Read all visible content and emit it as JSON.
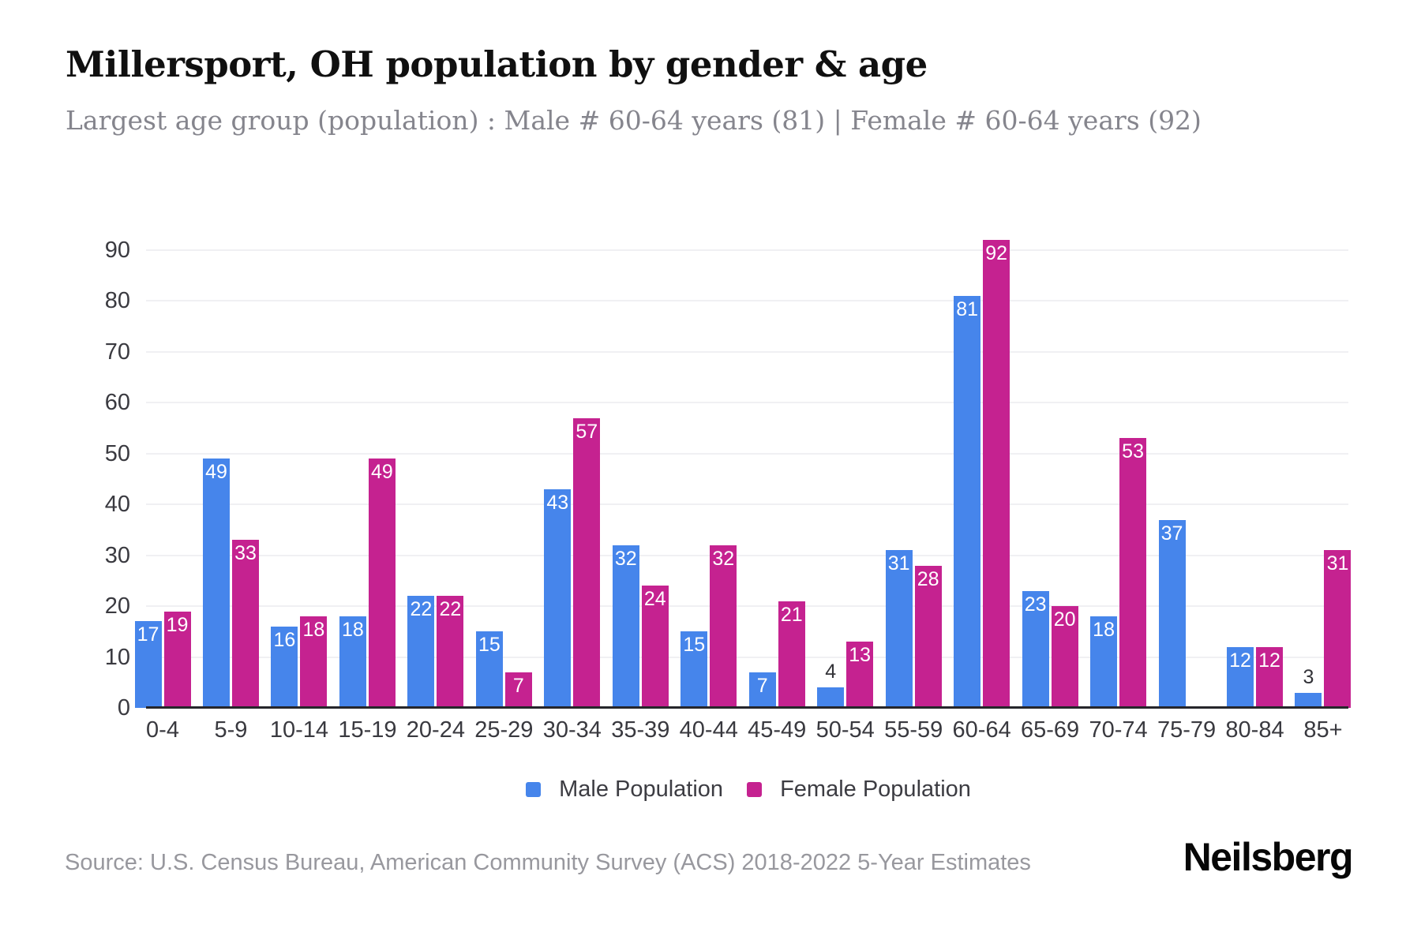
{
  "header": {
    "title": "Millersport, OH population by gender & age",
    "subtitle": "Largest age group (population) : Male # 60-64 years (81) | Female # 60-64 years (92)"
  },
  "chart_data": {
    "type": "bar",
    "title": "Millersport, OH population by gender & age",
    "categories": [
      "0-4",
      "5-9",
      "10-14",
      "15-19",
      "20-24",
      "25-29",
      "30-34",
      "35-39",
      "40-44",
      "45-49",
      "50-54",
      "55-59",
      "60-64",
      "65-69",
      "70-74",
      "75-79",
      "80-84",
      "85+"
    ],
    "series": [
      {
        "name": "Male Population",
        "color": "#4685EB",
        "values": [
          17,
          49,
          16,
          18,
          22,
          15,
          43,
          32,
          15,
          7,
          4,
          31,
          81,
          23,
          18,
          37,
          12,
          3
        ]
      },
      {
        "name": "Female Population",
        "color": "#C52290",
        "values": [
          19,
          33,
          18,
          49,
          22,
          7,
          57,
          24,
          32,
          21,
          13,
          28,
          92,
          20,
          53,
          0,
          12,
          31
        ]
      }
    ],
    "xlabel": "",
    "ylabel": "",
    "ylim": [
      0,
      95
    ],
    "yticks": [
      0,
      10,
      20,
      30,
      40,
      50,
      60,
      70,
      80,
      90
    ],
    "grid": true,
    "legend_position": "bottom",
    "value_labels": true
  },
  "colors": {
    "male": "#4685EB",
    "female": "#C52290",
    "grid": "#F0F0F3",
    "axis": "#26262B",
    "value_label_inside": "#FFFFFF",
    "value_label_outside": "#333338"
  },
  "footer": {
    "source": "Source: U.S. Census Bureau, American Community Survey (ACS) 2018-2022 5-Year Estimates",
    "brand": "Neilsberg"
  }
}
